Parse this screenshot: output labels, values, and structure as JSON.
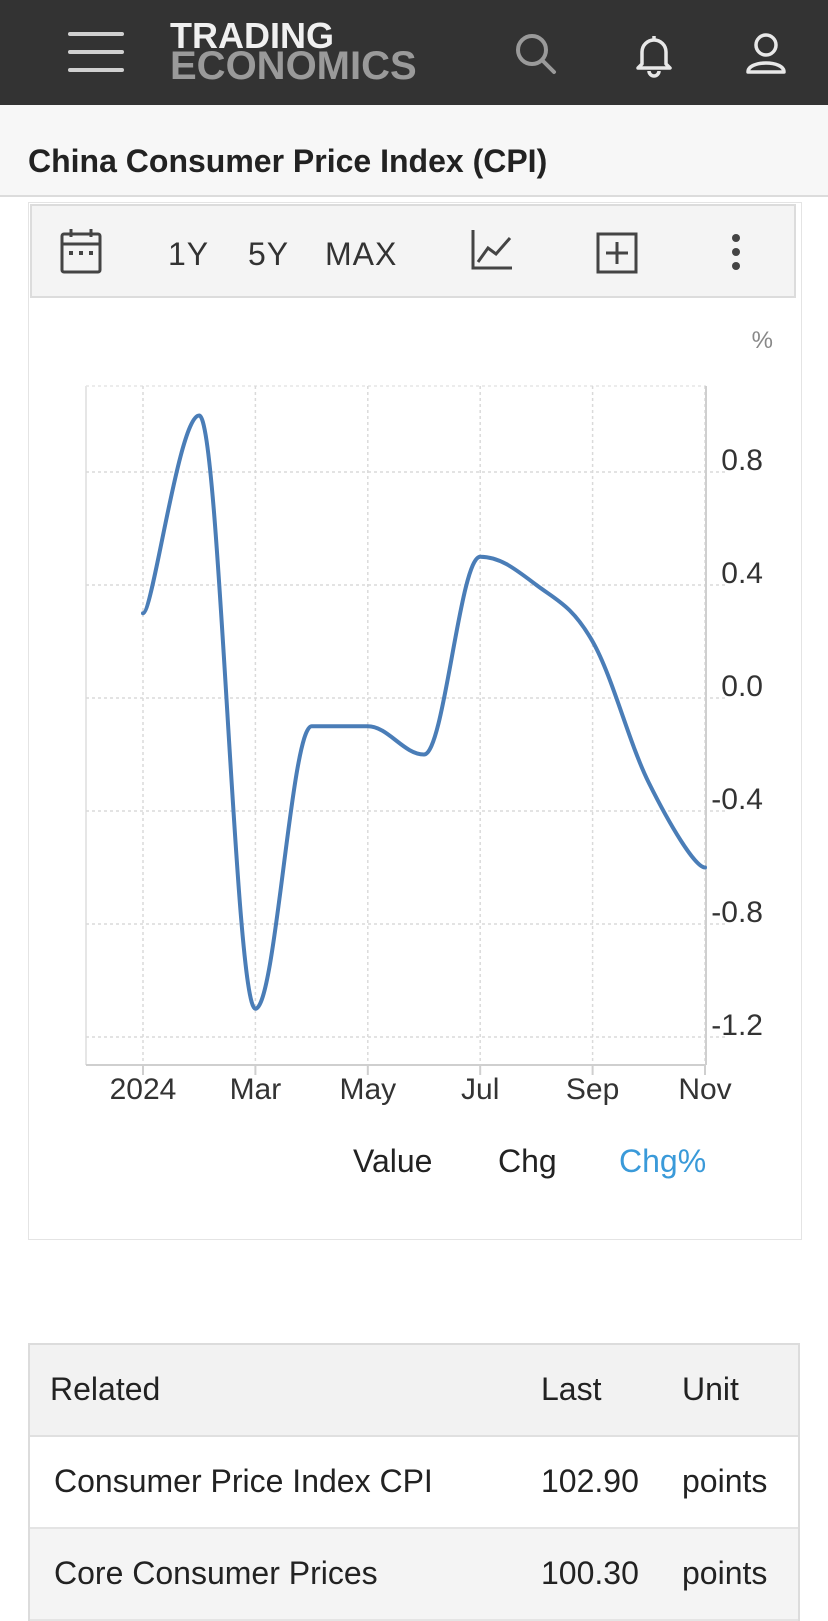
{
  "header": {
    "logo_line1": "TRADING",
    "logo_line2": "ECONOMICS",
    "icons": [
      "menu-icon",
      "search-icon",
      "bell-icon",
      "user-icon"
    ]
  },
  "page": {
    "title": "China Consumer Price Index (CPI)"
  },
  "toolbar": {
    "calendar_icon": "calendar-icon",
    "range_1y": "1Y",
    "range_5y": "5Y",
    "range_max": "MAX",
    "chart_type_icon": "line-chart-icon",
    "add_icon": "plus-box-icon",
    "more_icon": "more-vertical-icon"
  },
  "legend": {
    "value": "Value",
    "chg": "Chg",
    "chgpct": "Chg%",
    "active_color": "#3a9ad9"
  },
  "chart_data": {
    "type": "line",
    "title": "",
    "unit_label": "%",
    "x": [
      "2024-01",
      "2024-02",
      "2024-03",
      "2024-04",
      "2024-05",
      "2024-06",
      "2024-07",
      "2024-08",
      "2024-09",
      "2024-10",
      "2024-11"
    ],
    "x_tick_labels": [
      "2024",
      "Mar",
      "May",
      "Jul",
      "Sep",
      "Nov"
    ],
    "series": [
      {
        "values": [
          0.3,
          1.0,
          -1.1,
          -0.1,
          -0.1,
          -0.2,
          0.5,
          0.4,
          0.2,
          -0.3,
          -0.6
        ],
        "color": "#4a7db7"
      }
    ],
    "y_ticks": [
      0.8,
      0.4,
      0.0,
      -0.4,
      -0.8,
      -1.2
    ],
    "y_tick_labels": [
      "0.8",
      "0.4",
      "0.0",
      "-0.4",
      "-0.8",
      "-1.2"
    ],
    "ylim": [
      -1.2,
      1.1
    ],
    "y_axis_side": "right",
    "grid": true
  },
  "related_table": {
    "headers": [
      "Related",
      "Last",
      "Unit"
    ],
    "rows": [
      [
        "Consumer Price Index CPI",
        "102.90",
        "points"
      ],
      [
        "Core Consumer Prices",
        "100.30",
        "points"
      ]
    ]
  }
}
